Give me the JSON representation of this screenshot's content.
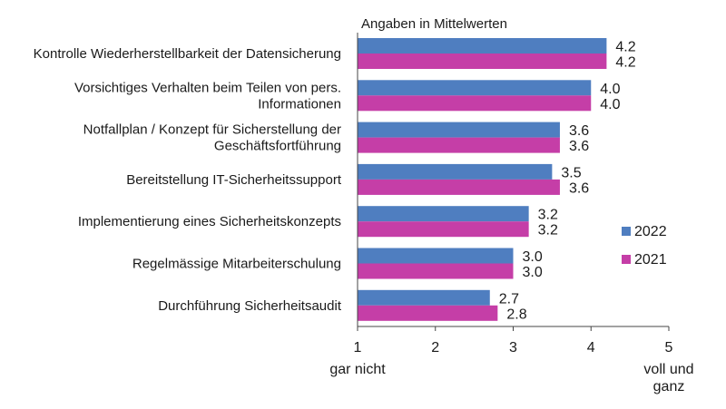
{
  "chart_data": {
    "type": "bar",
    "orientation": "horizontal",
    "subtitle": "Angaben in Mittelwerten",
    "categories": [
      [
        "Kontrolle Wiederherstellbarkeit der Datensicherung"
      ],
      [
        "Vorsichtiges Verhalten beim Teilen von pers.",
        "Informationen"
      ],
      [
        "Notfallplan / Konzept für Sicherstellung der",
        "Geschäftsfortführung"
      ],
      [
        "Bereitstellung  IT-Sicherheitssupport"
      ],
      [
        "Implementierung eines Sicherheitskonzepts"
      ],
      [
        "Regelmässige Mitarbeiterschulung"
      ],
      [
        "Durchführung Sicherheitsaudit"
      ]
    ],
    "series": [
      {
        "name": "2022",
        "color": "#4f7ec0",
        "values": [
          4.2,
          4.0,
          3.6,
          3.5,
          3.2,
          3.0,
          2.7
        ]
      },
      {
        "name": "2021",
        "color": "#c53ea7",
        "values": [
          4.2,
          4.0,
          3.6,
          3.6,
          3.2,
          3.0,
          2.8
        ]
      }
    ],
    "xlim": [
      1,
      5
    ],
    "xticks": [
      1,
      2,
      3,
      4,
      5
    ],
    "xtick_labels": [
      "1",
      "2",
      "3",
      "4",
      "5"
    ],
    "scale_labels": {
      "low": "gar nicht",
      "high": [
        "voll und",
        "ganz"
      ]
    },
    "legend_position": "right",
    "grid": false
  }
}
